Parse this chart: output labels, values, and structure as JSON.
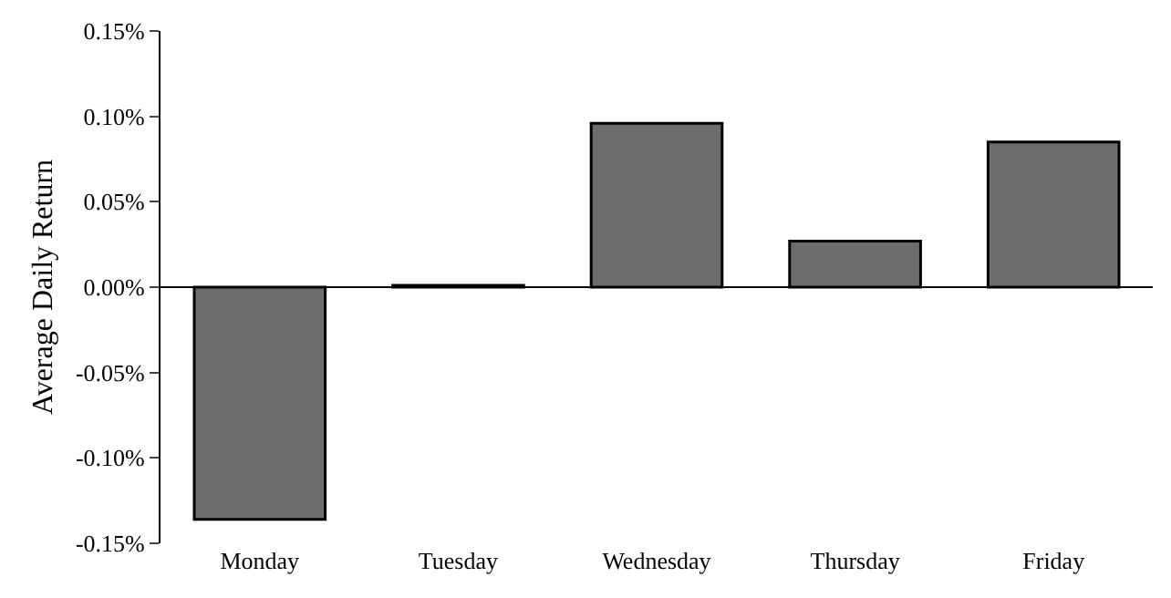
{
  "chart_data": {
    "type": "bar",
    "ylabel": "Average Daily Return",
    "categories": [
      "Monday",
      "Tuesday",
      "Wednesday",
      "Thursday",
      "Friday"
    ],
    "values": [
      -0.136,
      0.001,
      0.096,
      0.027,
      0.085
    ],
    "color": "#6d6d6d",
    "ylim": [
      -0.15,
      0.15
    ],
    "yticks": [
      {
        "value": -0.15,
        "label": "-0.15%"
      },
      {
        "value": -0.1,
        "label": "-0.10%"
      },
      {
        "value": -0.05,
        "label": "-0.05%"
      },
      {
        "value": 0,
        "label": "0.00%"
      },
      {
        "value": 0.05,
        "label": "0.05%"
      },
      {
        "value": 0.1,
        "label": "0.10%"
      },
      {
        "value": 0.15,
        "label": "0.15%"
      }
    ]
  }
}
